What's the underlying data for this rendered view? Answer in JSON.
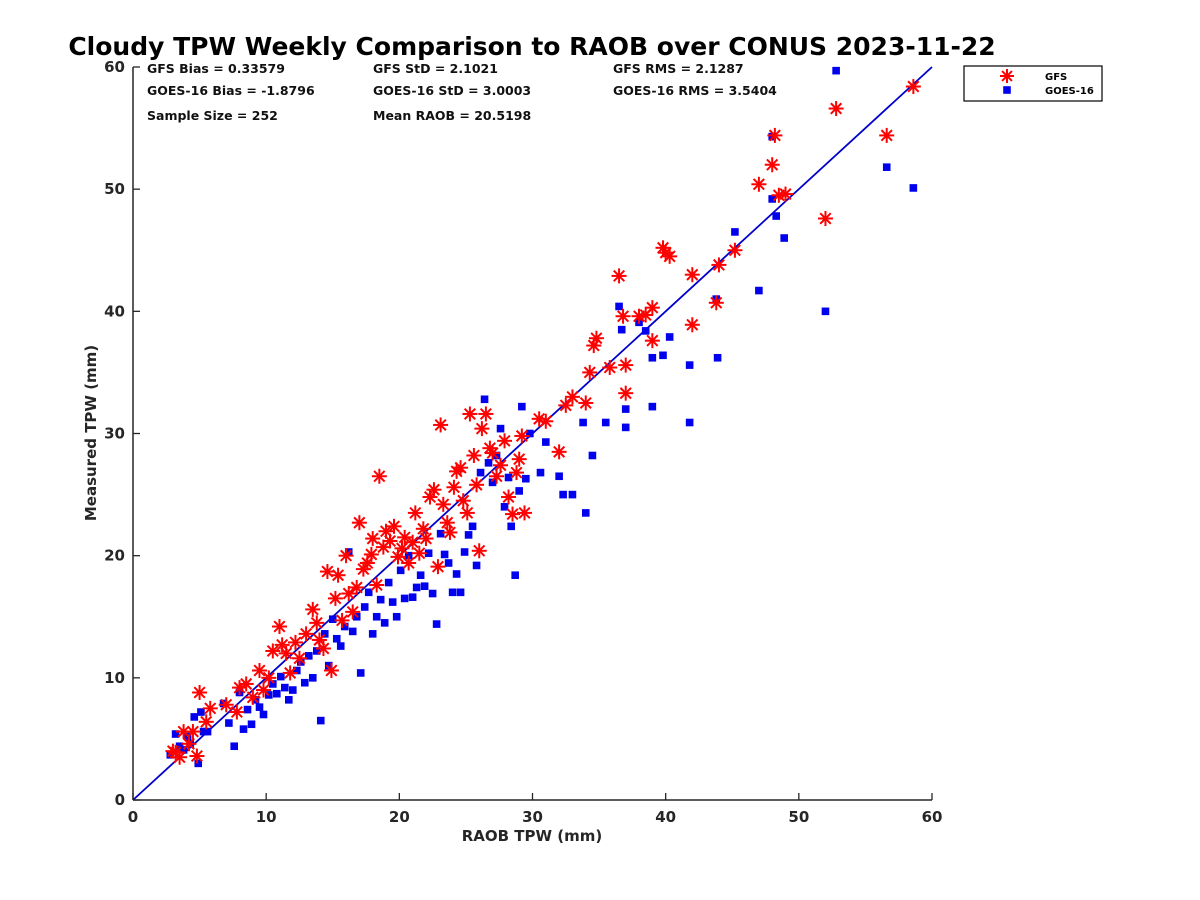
{
  "chart_data": {
    "type": "scatter",
    "title": "Cloudy TPW Weekly Comparison to RAOB over CONUS 2023-11-22",
    "xlabel": "RAOB TPW (mm)",
    "ylabel": "Measured TPW (mm)",
    "xlim": [
      0,
      60
    ],
    "ylim": [
      0,
      60
    ],
    "xticks": [
      "0",
      "10",
      "20",
      "30",
      "40",
      "50",
      "60"
    ],
    "yticks": [
      "0",
      "10",
      "20",
      "30",
      "40",
      "50",
      "60"
    ],
    "grid": false,
    "legend_position": "outside-top-right",
    "one_to_one_line": true,
    "line_color": "#0000cc",
    "stats": [
      [
        "GFS Bias = 0.33579",
        "GFS StD = 2.1021",
        "GFS RMS = 2.1287"
      ],
      [
        "GOES-16 Bias = -1.8796",
        "GOES-16 StD = 3.0003",
        "GOES-16 RMS = 3.5404"
      ],
      [
        "Sample Size = 252",
        "Mean RAOB = 20.5198",
        ""
      ]
    ],
    "series": [
      {
        "name": "GFS",
        "marker": "asterisk",
        "color": "#ff0000",
        "points": [
          [
            3,
            4
          ],
          [
            3.5,
            3.5
          ],
          [
            3.8,
            5.6
          ],
          [
            4.2,
            4.6
          ],
          [
            4.8,
            3.6
          ],
          [
            5,
            8.8
          ],
          [
            5.5,
            6.4
          ],
          [
            5.8,
            7.5
          ],
          [
            4.5,
            5.6
          ],
          [
            3.2,
            3.9
          ],
          [
            7,
            7.8
          ],
          [
            7.8,
            7.2
          ],
          [
            8,
            9.2
          ],
          [
            8.5,
            9.5
          ],
          [
            9,
            8.4
          ],
          [
            9.5,
            10.6
          ],
          [
            9.8,
            9
          ],
          [
            10.2,
            10
          ],
          [
            10.5,
            12.2
          ],
          [
            11,
            14.2
          ],
          [
            11.2,
            12.7
          ],
          [
            11.5,
            12
          ],
          [
            11.8,
            10.4
          ],
          [
            12.2,
            12.9
          ],
          [
            12.5,
            11.6
          ],
          [
            13,
            13.6
          ],
          [
            13.5,
            15.6
          ],
          [
            13.8,
            14.5
          ],
          [
            14,
            13.1
          ],
          [
            14.3,
            12.4
          ],
          [
            14.6,
            18.7
          ],
          [
            14.9,
            10.6
          ],
          [
            15.2,
            16.5
          ],
          [
            15.4,
            18.4
          ],
          [
            15.7,
            14.7
          ],
          [
            16,
            20
          ],
          [
            16.2,
            16.9
          ],
          [
            16.5,
            15.4
          ],
          [
            16.8,
            17.4
          ],
          [
            17,
            22.7
          ],
          [
            17.3,
            18.9
          ],
          [
            17.6,
            19.4
          ],
          [
            17.9,
            20.1
          ],
          [
            18,
            21.4
          ],
          [
            18.3,
            17.6
          ],
          [
            18.5,
            26.5
          ],
          [
            18.8,
            20.7
          ],
          [
            19,
            22
          ],
          [
            19.3,
            21.2
          ],
          [
            19.6,
            22.4
          ],
          [
            19.9,
            19.9
          ],
          [
            20.2,
            20.6
          ],
          [
            20.4,
            21.5
          ],
          [
            20.7,
            19.4
          ],
          [
            21,
            21.1
          ],
          [
            21.2,
            23.5
          ],
          [
            21.5,
            20.2
          ],
          [
            21.8,
            22.2
          ],
          [
            22,
            21.4
          ],
          [
            22.3,
            24.8
          ],
          [
            22.6,
            25.4
          ],
          [
            22.9,
            19.1
          ],
          [
            23.1,
            30.7
          ],
          [
            23.3,
            24.2
          ],
          [
            23.6,
            22.7
          ],
          [
            23.8,
            21.9
          ],
          [
            24.1,
            25.6
          ],
          [
            24.3,
            26.9
          ],
          [
            24.6,
            27.2
          ],
          [
            24.8,
            24.5
          ],
          [
            25.1,
            23.5
          ],
          [
            25.3,
            31.6
          ],
          [
            25.6,
            28.2
          ],
          [
            25.8,
            25.8
          ],
          [
            26,
            20.4
          ],
          [
            26.2,
            30.4
          ],
          [
            26.5,
            31.6
          ],
          [
            26.8,
            28.8
          ],
          [
            27,
            28.4
          ],
          [
            27.3,
            26.5
          ],
          [
            27.6,
            27.4
          ],
          [
            27.9,
            29.4
          ],
          [
            28.2,
            24.8
          ],
          [
            28.5,
            23.4
          ],
          [
            28.8,
            26.8
          ],
          [
            29,
            27.9
          ],
          [
            29.2,
            29.8
          ],
          [
            29.4,
            23.5
          ],
          [
            30.5,
            31.2
          ],
          [
            31,
            31
          ],
          [
            32,
            28.5
          ],
          [
            32.5,
            32.3
          ],
          [
            33,
            33
          ],
          [
            34,
            32.5
          ],
          [
            34.3,
            35
          ],
          [
            34.6,
            37.2
          ],
          [
            34.8,
            37.8
          ],
          [
            35.8,
            35.4
          ],
          [
            36.5,
            42.9
          ],
          [
            36.8,
            39.6
          ],
          [
            37,
            33.3
          ],
          [
            37,
            35.6
          ],
          [
            38,
            39.6
          ],
          [
            38.5,
            39.7
          ],
          [
            39,
            37.6
          ],
          [
            39,
            40.3
          ],
          [
            39.8,
            45.2
          ],
          [
            40,
            44.8
          ],
          [
            40.3,
            44.5
          ],
          [
            42,
            43
          ],
          [
            42,
            38.9
          ],
          [
            43.8,
            40.7
          ],
          [
            44,
            43.8
          ],
          [
            45.2,
            45
          ],
          [
            47,
            50.4
          ],
          [
            48,
            52
          ],
          [
            48.2,
            54.4
          ],
          [
            48.5,
            49.5
          ],
          [
            49,
            49.6
          ],
          [
            52,
            47.6
          ],
          [
            52.8,
            56.6
          ],
          [
            56.6,
            54.4
          ],
          [
            58.6,
            58.4
          ]
        ]
      },
      {
        "name": "GOES-16",
        "marker": "square",
        "color": "#0000ee",
        "points": [
          [
            2.8,
            3.7
          ],
          [
            3.2,
            5.4
          ],
          [
            3.5,
            4.4
          ],
          [
            3.8,
            4.1
          ],
          [
            4.1,
            5.2
          ],
          [
            4.3,
            4.6
          ],
          [
            4.6,
            6.8
          ],
          [
            4.9,
            3
          ],
          [
            5.1,
            7.2
          ],
          [
            5.3,
            5.6
          ],
          [
            5.6,
            5.6
          ],
          [
            6.8,
            7.9
          ],
          [
            7.2,
            6.3
          ],
          [
            7.6,
            4.4
          ],
          [
            8,
            8.8
          ],
          [
            8.3,
            5.8
          ],
          [
            8.6,
            7.4
          ],
          [
            8.9,
            6.2
          ],
          [
            9.2,
            8.2
          ],
          [
            9.5,
            7.6
          ],
          [
            9.8,
            7
          ],
          [
            10.2,
            8.6
          ],
          [
            10.5,
            9.5
          ],
          [
            10.8,
            8.7
          ],
          [
            11.1,
            10.1
          ],
          [
            11.4,
            9.2
          ],
          [
            11.7,
            8.2
          ],
          [
            12,
            9
          ],
          [
            12.3,
            10.6
          ],
          [
            12.6,
            11.3
          ],
          [
            12.9,
            9.6
          ],
          [
            13.2,
            11.8
          ],
          [
            13.5,
            10
          ],
          [
            13.8,
            12.2
          ],
          [
            14.1,
            6.5
          ],
          [
            14.4,
            13.6
          ],
          [
            14.7,
            11
          ],
          [
            15,
            14.8
          ],
          [
            15.3,
            13.2
          ],
          [
            15.6,
            12.6
          ],
          [
            15.9,
            14.2
          ],
          [
            16.2,
            20.3
          ],
          [
            16.5,
            13.8
          ],
          [
            16.8,
            15
          ],
          [
            17.1,
            10.4
          ],
          [
            17.4,
            15.8
          ],
          [
            17.7,
            17
          ],
          [
            18,
            13.6
          ],
          [
            18.3,
            15
          ],
          [
            18.6,
            16.4
          ],
          [
            18.9,
            14.5
          ],
          [
            19.2,
            17.8
          ],
          [
            19.5,
            16.2
          ],
          [
            19.8,
            15
          ],
          [
            20.1,
            18.8
          ],
          [
            20.4,
            16.5
          ],
          [
            20.7,
            20
          ],
          [
            21,
            16.6
          ],
          [
            21.3,
            17.4
          ],
          [
            21.6,
            18.4
          ],
          [
            21.9,
            17.5
          ],
          [
            22.2,
            20.2
          ],
          [
            22.5,
            16.9
          ],
          [
            22.8,
            14.4
          ],
          [
            23.1,
            21.8
          ],
          [
            23.4,
            20.1
          ],
          [
            23.7,
            19.4
          ],
          [
            24,
            17
          ],
          [
            24.3,
            18.5
          ],
          [
            24.6,
            17
          ],
          [
            24.9,
            20.3
          ],
          [
            25.2,
            21.7
          ],
          [
            25.5,
            22.4
          ],
          [
            25.8,
            19.2
          ],
          [
            26.1,
            26.8
          ],
          [
            26.4,
            32.8
          ],
          [
            26.7,
            27.6
          ],
          [
            27,
            26
          ],
          [
            27.3,
            28.2
          ],
          [
            27.6,
            30.4
          ],
          [
            27.9,
            24
          ],
          [
            28.2,
            26.4
          ],
          [
            28.4,
            22.4
          ],
          [
            28.7,
            18.4
          ],
          [
            29,
            25.3
          ],
          [
            29.2,
            32.2
          ],
          [
            29.5,
            26.3
          ],
          [
            29.8,
            30
          ],
          [
            30.6,
            26.8
          ],
          [
            31,
            29.3
          ],
          [
            32,
            26.5
          ],
          [
            32.3,
            25
          ],
          [
            33,
            25
          ],
          [
            33.8,
            30.9
          ],
          [
            34,
            23.5
          ],
          [
            34.5,
            28.2
          ],
          [
            35.5,
            30.9
          ],
          [
            36.5,
            40.4
          ],
          [
            36.7,
            38.5
          ],
          [
            37,
            30.5
          ],
          [
            37,
            32
          ],
          [
            38,
            39.1
          ],
          [
            38.5,
            38.4
          ],
          [
            39,
            36.2
          ],
          [
            39,
            32.2
          ],
          [
            39.8,
            36.4
          ],
          [
            40.3,
            37.9
          ],
          [
            41.8,
            30.9
          ],
          [
            41.8,
            35.6
          ],
          [
            43.8,
            41
          ],
          [
            43.9,
            36.2
          ],
          [
            45.2,
            46.5
          ],
          [
            47,
            41.7
          ],
          [
            48,
            49.2
          ],
          [
            48.3,
            47.8
          ],
          [
            48,
            54.3
          ],
          [
            48.9,
            46
          ],
          [
            52,
            40
          ],
          [
            52.8,
            59.7
          ],
          [
            56.6,
            51.8
          ],
          [
            58.6,
            50.1
          ]
        ]
      }
    ]
  }
}
